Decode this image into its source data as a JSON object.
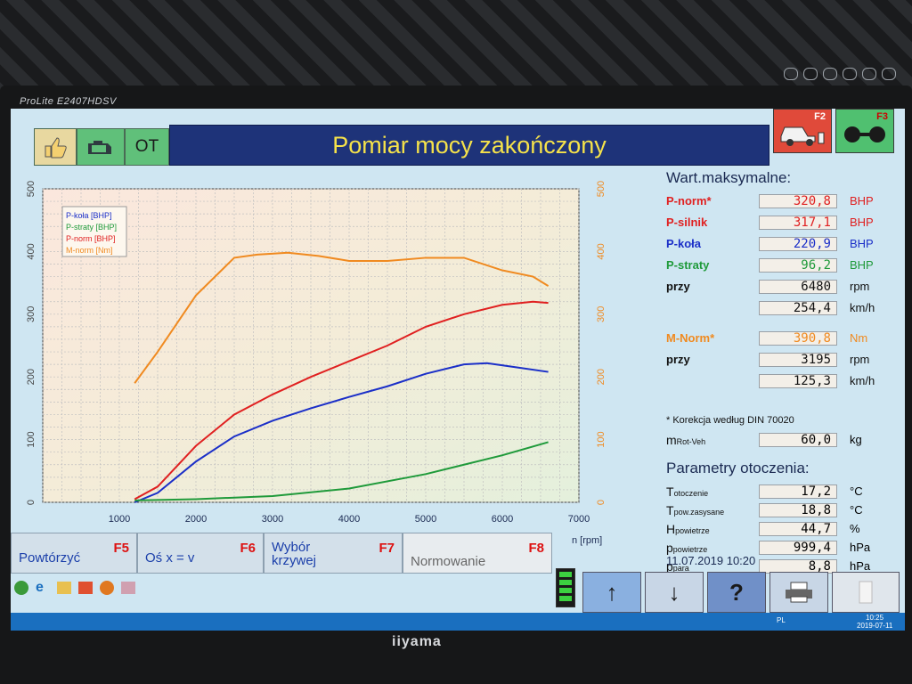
{
  "monitor": {
    "model": "ProLite E2407HDSV",
    "brand": "iiyama"
  },
  "header": {
    "title": "Pomiar mocy zakończony",
    "ot_label": "OT",
    "f2_label": "F2",
    "f3_label": "F3"
  },
  "colors": {
    "p_norm": "#e02020",
    "p_silnik": "#e02020",
    "p_kola": "#1b2fc8",
    "p_straty": "#1f9a3a",
    "m_norm": "#f08a20",
    "title_bg": "#1e3379",
    "title_text": "#f5e24a"
  },
  "chart_data": {
    "type": "line",
    "x_unit": "n [rpm]",
    "xlim": [
      0,
      7000
    ],
    "ylim_left": [
      0,
      500
    ],
    "ylim_right": [
      0,
      500
    ],
    "x_ticks": [
      "1000",
      "2000",
      "3000",
      "4000",
      "5000",
      "6000",
      "7000"
    ],
    "y_ticks_left": [
      "0",
      "100",
      "200",
      "300",
      "400",
      "500"
    ],
    "y_ticks_right": [
      "0",
      "100",
      "200",
      "300",
      "400",
      "500"
    ],
    "legend": [
      "P-koła [BHP]",
      "P-straty [BHP]",
      "P-norm [BHP]",
      "M-norm [Nm]"
    ],
    "series": [
      {
        "name": "P-koła [BHP]",
        "color": "#1b2fc8",
        "x": [
          1200,
          1500,
          2000,
          2500,
          3000,
          3500,
          4000,
          4500,
          5000,
          5500,
          5800,
          6200,
          6600
        ],
        "y": [
          0,
          15,
          65,
          105,
          130,
          150,
          168,
          185,
          205,
          220,
          222,
          215,
          208
        ]
      },
      {
        "name": "P-straty [BHP]",
        "color": "#1f9a3a",
        "x": [
          1200,
          2000,
          3000,
          4000,
          5000,
          6000,
          6600
        ],
        "y": [
          3,
          5,
          10,
          22,
          45,
          75,
          96
        ]
      },
      {
        "name": "P-norm [BHP]",
        "color": "#e02020",
        "x": [
          1200,
          1500,
          2000,
          2500,
          3000,
          3500,
          4000,
          4500,
          5000,
          5500,
          6000,
          6400,
          6600
        ],
        "y": [
          5,
          25,
          90,
          140,
          172,
          200,
          225,
          250,
          280,
          300,
          315,
          320,
          318
        ]
      },
      {
        "name": "M-norm [Nm]",
        "color": "#f08a20",
        "x": [
          1200,
          1500,
          2000,
          2500,
          2800,
          3200,
          3600,
          4000,
          4500,
          5000,
          5500,
          6000,
          6400,
          6600
        ],
        "y": [
          190,
          240,
          330,
          390,
          395,
          398,
          393,
          385,
          385,
          390,
          390,
          370,
          360,
          345
        ]
      }
    ]
  },
  "panel": {
    "max_title": "Wart.maksymalne:",
    "rows": [
      {
        "label": "P-norm*",
        "value": "320,8",
        "unit": "BHP",
        "color": "#e02020"
      },
      {
        "label": "P-silnik",
        "value": "317,1",
        "unit": "BHP",
        "color": "#e02020"
      },
      {
        "label": "P-koła",
        "value": "220,9",
        "unit": "BHP",
        "color": "#1b2fc8"
      },
      {
        "label": "P-straty",
        "value": "96,2",
        "unit": "BHP",
        "color": "#1f9a3a"
      },
      {
        "label": "przy",
        "value": "6480",
        "unit": "rpm",
        "color": "#111111"
      },
      {
        "label": "",
        "value": "254,4",
        "unit": "km/h",
        "color": "#111111"
      },
      {
        "label": "M-Norm*",
        "value": "390,8",
        "unit": "Nm",
        "color": "#f08a20"
      },
      {
        "label": "przy",
        "value": "3195",
        "unit": "rpm",
        "color": "#111111"
      },
      {
        "label": "",
        "value": "125,3",
        "unit": "km/h",
        "color": "#111111"
      }
    ],
    "correction": "* Korekcja według DIN 70020",
    "mrot_label": "m",
    "mrot_sub": "Rot-Veh",
    "mrot_value": "60,0",
    "mrot_unit": "kg",
    "env_title": "Parametry otoczenia:",
    "env_rows": [
      {
        "label": "T",
        "sub": "otoczenie",
        "value": "17,2",
        "unit": "°C"
      },
      {
        "label": "T",
        "sub": "pow.zasysane",
        "value": "18,8",
        "unit": "°C"
      },
      {
        "label": "H",
        "sub": "powietrze",
        "value": "44,7",
        "unit": "%"
      },
      {
        "label": "p",
        "sub": "powietrze",
        "value": "999,4",
        "unit": "hPa"
      },
      {
        "label": "p",
        "sub": "para",
        "value": "8,8",
        "unit": "hPa"
      }
    ],
    "datetime": "11.07.2019   10:20"
  },
  "footer": {
    "f5_label": "Powtórzyć",
    "f5_key": "F5",
    "f6_label": "Oś x = v",
    "f6_key": "F6",
    "f7_label": "Wybór krzywej",
    "f7_key": "F7",
    "f8_label": "Normowanie",
    "f8_key": "F8"
  },
  "taskbar": {
    "time": "10:25",
    "date": "2019-07-11",
    "lang": "PL"
  }
}
